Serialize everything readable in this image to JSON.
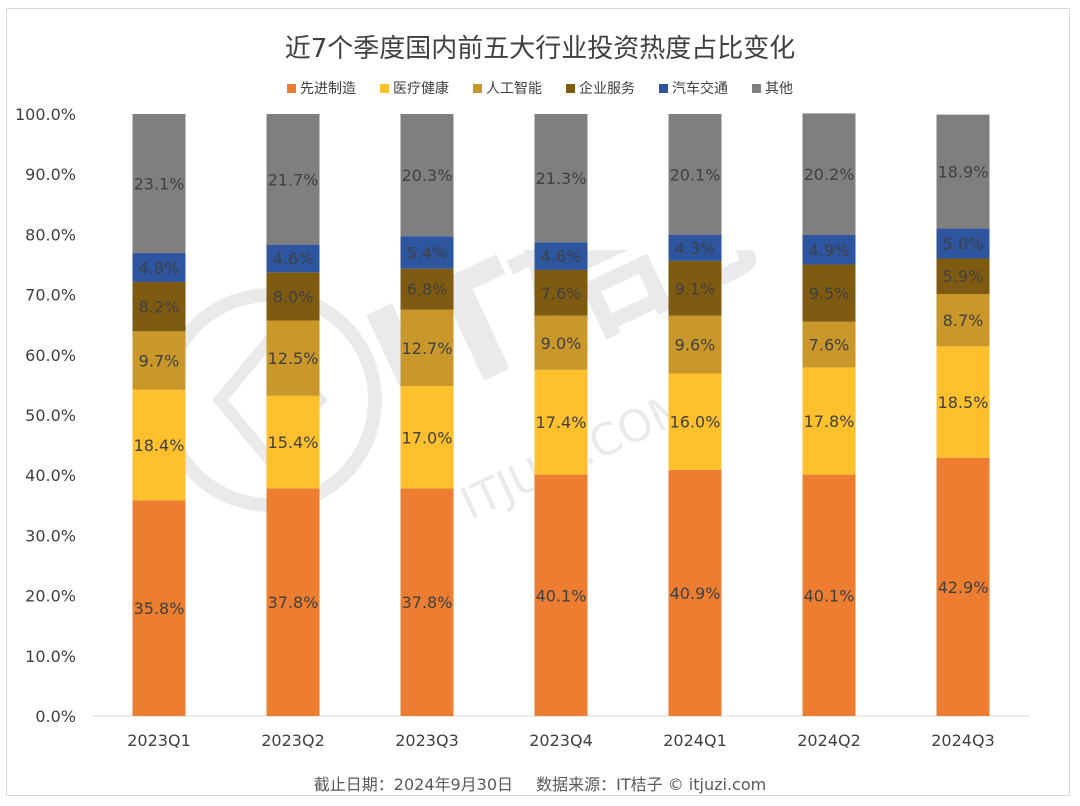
{
  "chart_data": {
    "type": "bar",
    "stacked": true,
    "title": "近7个季度国内前五大行业投资热度占比变化",
    "categories": [
      "2023Q1",
      "2023Q2",
      "2023Q3",
      "2023Q4",
      "2024Q1",
      "2024Q2",
      "2024Q3"
    ],
    "series": [
      {
        "name": "先进制造",
        "color": "#ed7d31",
        "values": [
          35.8,
          37.8,
          37.8,
          40.1,
          40.9,
          40.1,
          42.9
        ]
      },
      {
        "name": "医疗健康",
        "color": "#ffc02e",
        "values": [
          18.4,
          15.4,
          17.0,
          17.4,
          16.0,
          17.8,
          18.5
        ]
      },
      {
        "name": "人工智能",
        "color": "#c9972a",
        "values": [
          9.7,
          12.5,
          12.7,
          9.0,
          9.6,
          7.6,
          8.7
        ]
      },
      {
        "name": "企业服务",
        "color": "#7f5b12",
        "values": [
          8.2,
          8.0,
          6.8,
          7.6,
          9.1,
          9.5,
          5.9
        ]
      },
      {
        "name": "汽车交通",
        "color": "#2e56a0",
        "values": [
          4.8,
          4.6,
          5.4,
          4.6,
          4.3,
          4.9,
          5.0
        ]
      },
      {
        "name": "其他",
        "color": "#7f7f7f",
        "values": [
          23.1,
          21.7,
          20.3,
          21.3,
          20.1,
          20.2,
          18.9
        ]
      }
    ],
    "ylim": [
      0,
      100
    ],
    "yticks": [
      "0.0%",
      "10.0%",
      "20.0%",
      "30.0%",
      "40.0%",
      "50.0%",
      "60.0%",
      "70.0%",
      "80.0%",
      "90.0%",
      "100.0%"
    ],
    "legend_position": "top",
    "grid": false,
    "xlabel": "",
    "ylabel": ""
  },
  "footer": {
    "date_text": "截止日期：2024年9月30日",
    "source_text": "数据来源：IT桔子 © itjuzi.com"
  },
  "watermark": {
    "text": "IT桔子",
    "url": "ITJUZI.COM"
  }
}
